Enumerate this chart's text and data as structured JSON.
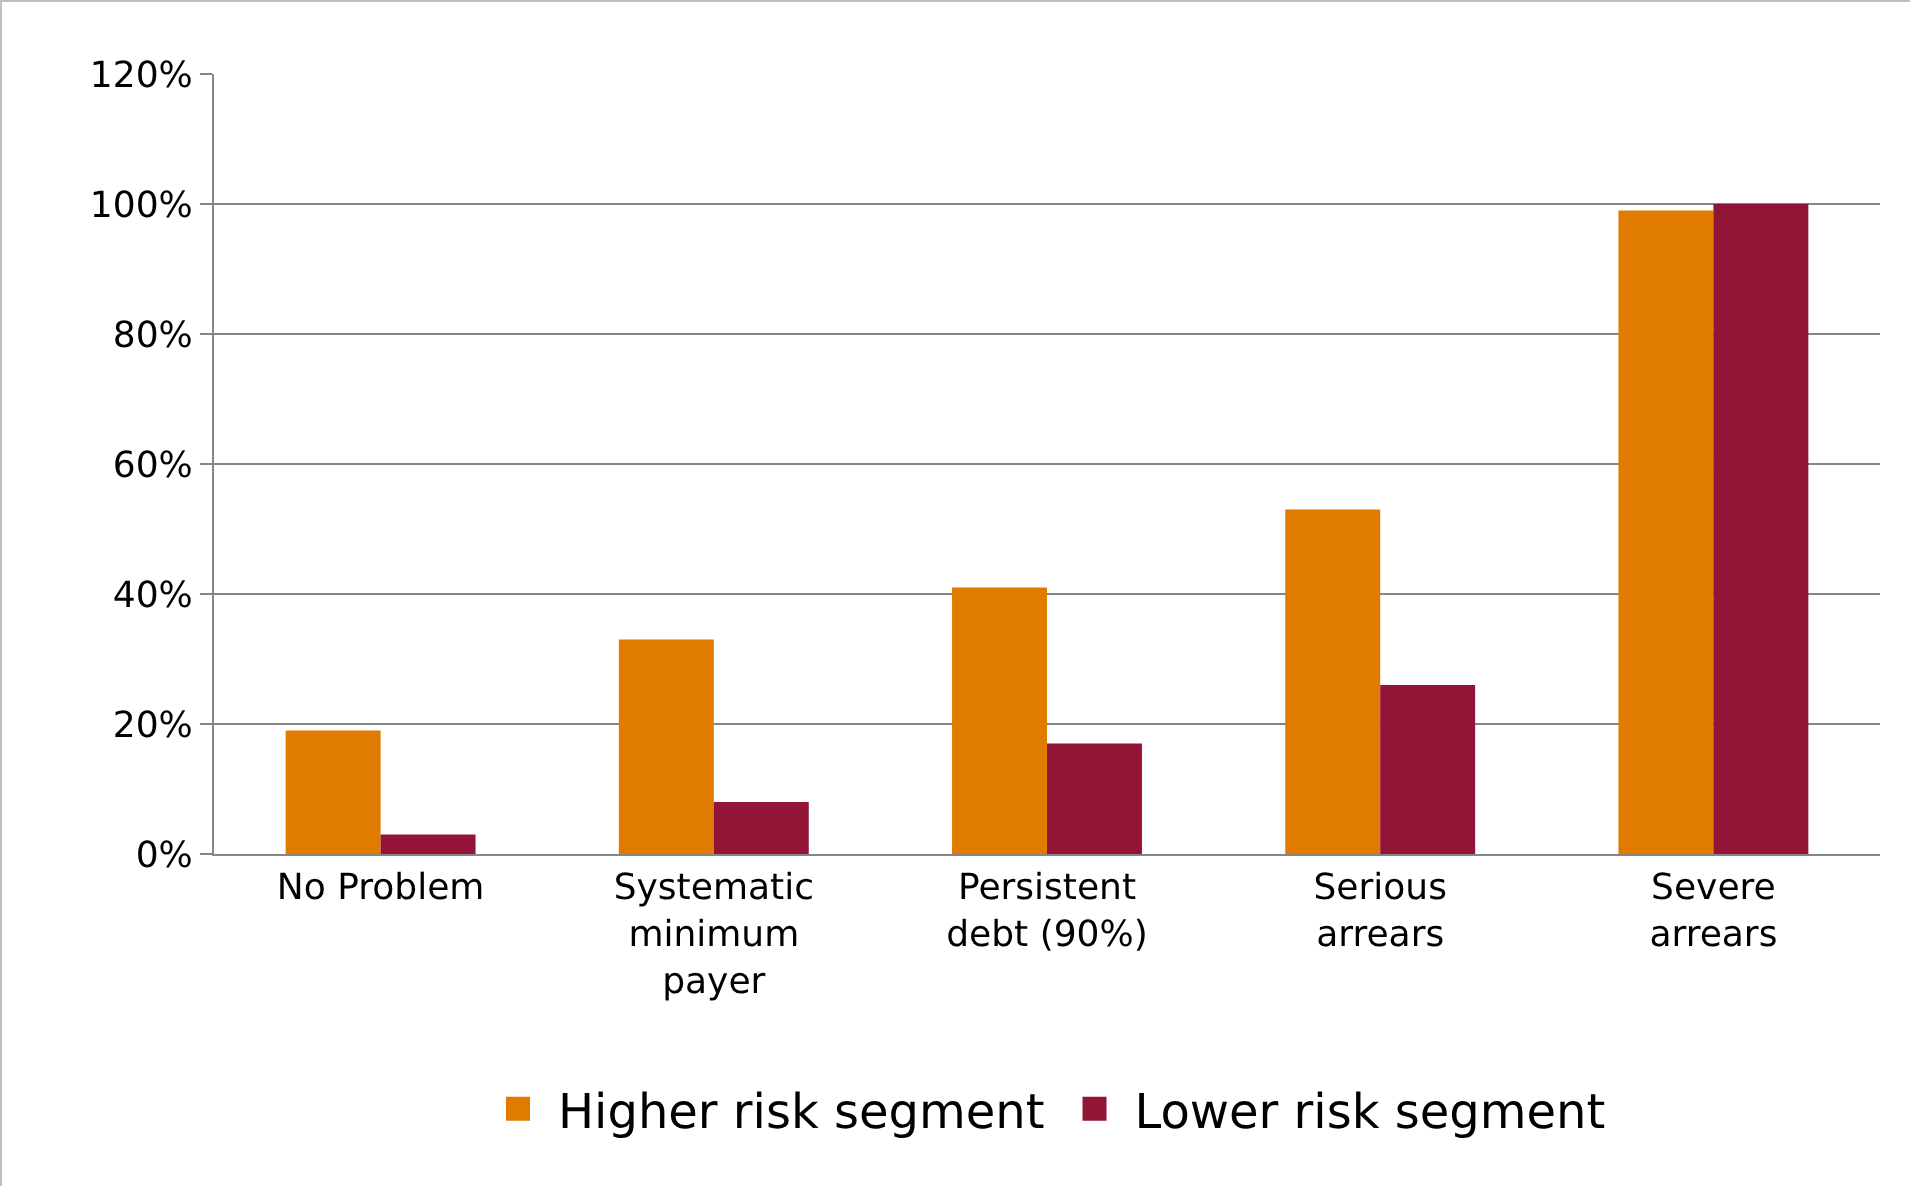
{
  "chart_data": {
    "type": "bar",
    "categories": [
      "No Problem",
      "Systematic minimum payer",
      "Persistent debt (90%)",
      "Serious arrears",
      "Severe arrears"
    ],
    "series": [
      {
        "name": "Higher risk segment",
        "color": "#e07b00",
        "values": [
          19,
          33,
          41,
          53,
          99
        ]
      },
      {
        "name": "Lower risk segment",
        "color": "#921537",
        "values": [
          3,
          8,
          17,
          26,
          100
        ]
      }
    ],
    "ylim": [
      0,
      120
    ],
    "yticks": [
      {
        "value": 0,
        "label": "0%"
      },
      {
        "value": 20,
        "label": "20%"
      },
      {
        "value": 40,
        "label": "40%"
      },
      {
        "value": 60,
        "label": "60%"
      },
      {
        "value": 80,
        "label": "80%"
      },
      {
        "value": 100,
        "label": "100%"
      },
      {
        "value": 120,
        "label": "120%"
      }
    ],
    "grid": "y",
    "legend": "bottom"
  }
}
